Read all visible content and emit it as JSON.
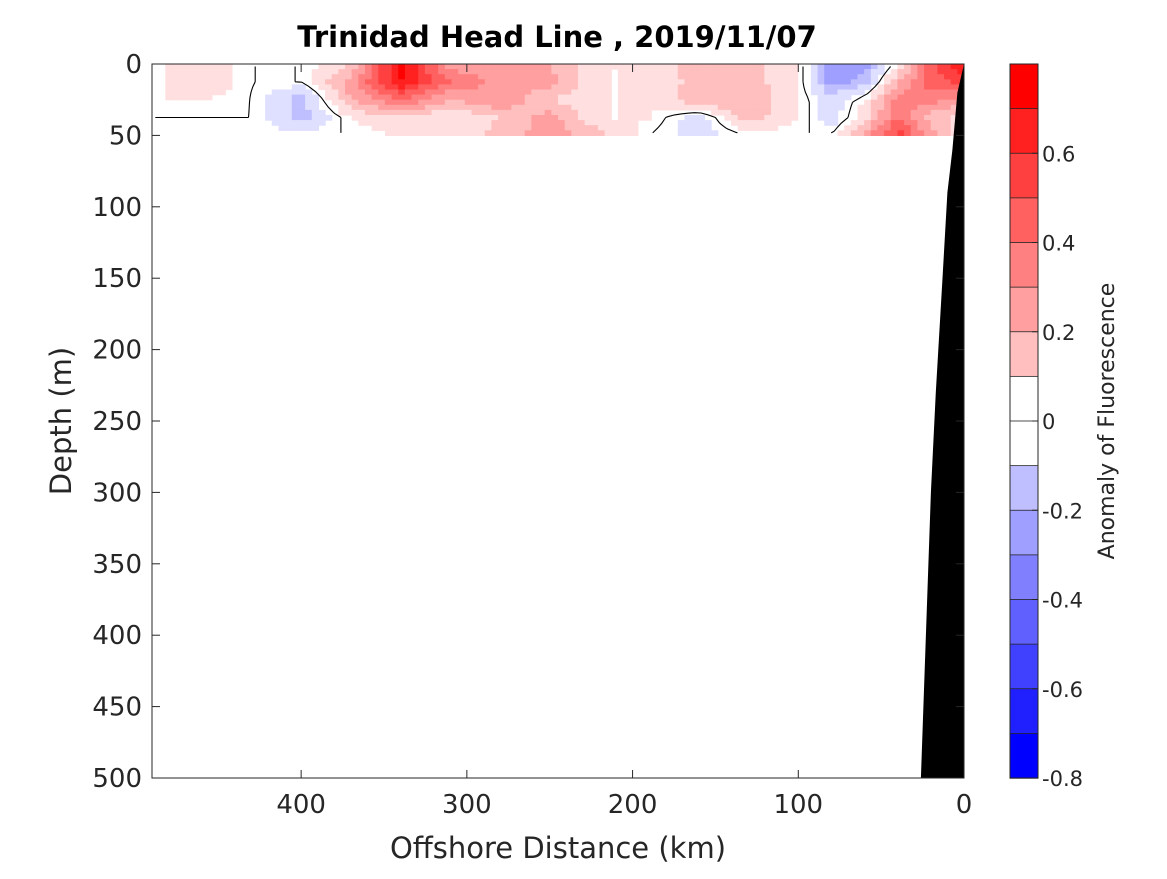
{
  "chart_data": {
    "type": "heatmap",
    "title": "Trinidad Head Line , 2019/11/07",
    "xlabel": "Offshore Distance (km)",
    "ylabel": "Depth (m)",
    "xlim": [
      490,
      0
    ],
    "ylim": [
      0,
      500
    ],
    "x_reversed": true,
    "y_reversed": true,
    "x_ticks": [
      400,
      300,
      200,
      100,
      0
    ],
    "y_ticks": [
      0,
      50,
      100,
      150,
      200,
      250,
      300,
      350,
      400,
      450,
      500
    ],
    "colorbar": {
      "label": "Anomaly of Fluorescence",
      "range": [
        -0.8,
        0.8
      ],
      "step": 0.1,
      "ticks": [
        0.6,
        0.4,
        0.2,
        0,
        -0.2,
        -0.4,
        -0.6,
        -0.8
      ],
      "color_positive": "#ff0000",
      "color_negative": "#0000ff",
      "color_zero": "#ffffff"
    },
    "data_depth_range": [
      0,
      50
    ],
    "grid": false,
    "bathymetry": {
      "color": "#000000",
      "points": [
        {
          "x": 0,
          "y": 0
        },
        {
          "x": 4,
          "y": 20
        },
        {
          "x": 7,
          "y": 60
        },
        {
          "x": 10,
          "y": 90
        },
        {
          "x": 13,
          "y": 150
        },
        {
          "x": 17,
          "y": 230
        },
        {
          "x": 20,
          "y": 300
        },
        {
          "x": 23,
          "y": 400
        },
        {
          "x": 26,
          "y": 500
        }
      ]
    },
    "anomaly_field": {
      "x_stations": [
        490,
        460,
        430,
        400,
        370,
        340,
        310,
        280,
        250,
        220,
        190,
        160,
        130,
        100,
        80,
        60,
        40,
        20,
        0
      ],
      "depths": [
        0,
        12.5,
        25,
        37.5,
        50
      ],
      "values": [
        [
          0.0,
          0.15,
          0.0,
          0.0,
          0.15,
          0.8,
          0.3,
          0.3,
          0.25,
          0.05,
          0.05,
          0.25,
          0.2,
          0.05,
          -0.3,
          -0.3,
          0.05,
          0.5,
          0.8
        ],
        [
          0.0,
          0.15,
          0.0,
          0.0,
          0.3,
          0.75,
          0.45,
          0.3,
          0.3,
          0.05,
          0.05,
          0.2,
          0.2,
          0.05,
          -0.3,
          -0.2,
          0.25,
          0.5,
          0.6
        ],
        [
          0.05,
          0.05,
          0.0,
          -0.2,
          0.25,
          0.45,
          0.25,
          0.35,
          0.15,
          0.05,
          0.05,
          0.25,
          0.25,
          0.05,
          -0.1,
          0.05,
          0.4,
          0.4,
          0.3
        ],
        [
          0.0,
          0.0,
          0.0,
          -0.2,
          0.05,
          0.15,
          0.05,
          0.15,
          0.3,
          0.05,
          0.05,
          -0.1,
          0.2,
          0.05,
          -0.1,
          0.1,
          0.45,
          0.2,
          0.1
        ],
        [
          0.0,
          0.0,
          0.0,
          0.0,
          0.0,
          0.05,
          0.05,
          0.2,
          0.3,
          0.2,
          0.0,
          -0.1,
          0.0,
          0.0,
          0.0,
          0.3,
          0.6,
          0.3,
          0.0
        ]
      ]
    }
  }
}
